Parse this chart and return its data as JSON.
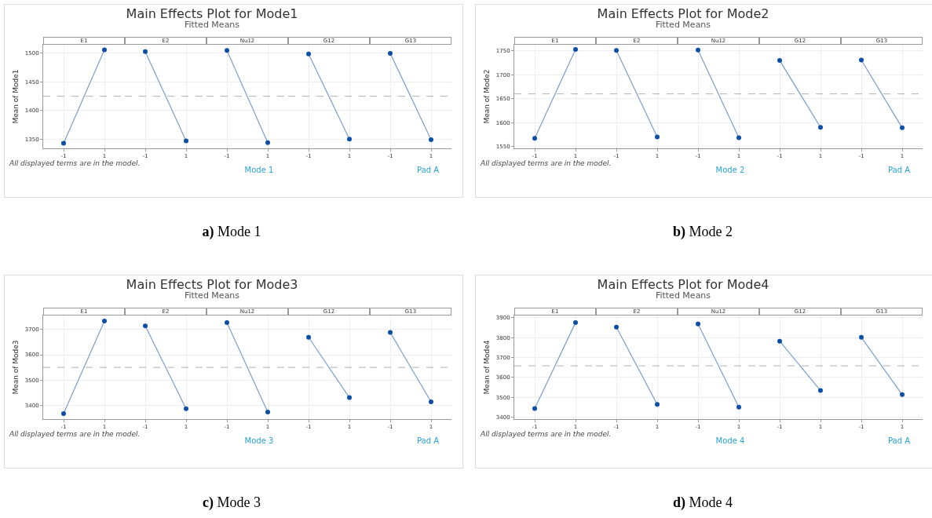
{
  "chart_data": [
    {
      "type": "line",
      "title": "E1",
      "ylabel": "Mean of Mode1",
      "categories": [
        "-1",
        "1"
      ],
      "ylim": [
        1334,
        1515
      ],
      "yticks": [
        1350,
        1400,
        1450,
        1500
      ],
      "grid": true,
      "marker": "circle",
      "series": [
        {
          "color": "#0d4fa3",
          "values": [
            1343,
            1506
          ]
        }
      ],
      "ref_lines": [
        {
          "axis": "y",
          "value": 1425,
          "color": "#b0b0b0",
          "line_style": "dashed"
        }
      ],
      "annotations": [
        "Main Effects Plot for Mode1",
        "Fitted Means",
        "All displayed terms are in the model.",
        "Mode 1",
        "Pad A",
        "a) Mode 1"
      ]
    },
    {
      "type": "line",
      "title": "E2",
      "categories": [
        "-1",
        "1"
      ],
      "ylim": [
        1334,
        1515
      ],
      "yticks": [
        1350,
        1400,
        1450,
        1500
      ],
      "tick_labels": "x",
      "grid": true,
      "marker": "circle",
      "series": [
        {
          "color": "#0d4fa3",
          "values": [
            1503,
            1347
          ]
        }
      ],
      "ref_lines": [
        {
          "axis": "y",
          "value": 1425,
          "color": "#b0b0b0",
          "line_style": "dashed"
        }
      ]
    },
    {
      "type": "line",
      "title": "Nu12",
      "categories": [
        "-1",
        "1"
      ],
      "ylim": [
        1334,
        1515
      ],
      "yticks": [
        1350,
        1400,
        1450,
        1500
      ],
      "tick_labels": "x",
      "grid": true,
      "marker": "circle",
      "series": [
        {
          "color": "#0d4fa3",
          "values": [
            1505,
            1344
          ]
        }
      ],
      "ref_lines": [
        {
          "axis": "y",
          "value": 1425,
          "color": "#b0b0b0",
          "line_style": "dashed"
        }
      ]
    },
    {
      "type": "line",
      "title": "G12",
      "categories": [
        "-1",
        "1"
      ],
      "ylim": [
        1334,
        1515
      ],
      "yticks": [
        1350,
        1400,
        1450,
        1500
      ],
      "tick_labels": "x",
      "grid": true,
      "marker": "circle",
      "series": [
        {
          "color": "#0d4fa3",
          "values": [
            1499,
            1350
          ]
        }
      ],
      "ref_lines": [
        {
          "axis": "y",
          "value": 1425,
          "color": "#b0b0b0",
          "line_style": "dashed"
        }
      ]
    },
    {
      "type": "line",
      "title": "G13",
      "categories": [
        "-1",
        "1"
      ],
      "ylim": [
        1334,
        1515
      ],
      "yticks": [
        1350,
        1400,
        1450,
        1500
      ],
      "tick_labels": "x",
      "grid": true,
      "marker": "circle",
      "series": [
        {
          "color": "#0d4fa3",
          "values": [
            1500,
            1349
          ]
        }
      ],
      "ref_lines": [
        {
          "axis": "y",
          "value": 1425,
          "color": "#b0b0b0",
          "line_style": "dashed"
        }
      ]
    },
    {
      "type": "line",
      "title": "E1",
      "ylabel": "Mean of Mode2",
      "categories": [
        "-1",
        "1"
      ],
      "ylim": [
        1546,
        1763
      ],
      "yticks": [
        1550,
        1600,
        1650,
        1700,
        1750
      ],
      "grid": true,
      "marker": "circle",
      "series": [
        {
          "color": "#0d4fa3",
          "values": [
            1567,
            1753
          ]
        }
      ],
      "ref_lines": [
        {
          "axis": "y",
          "value": 1660,
          "color": "#b0b0b0",
          "line_style": "dashed"
        }
      ],
      "annotations": [
        "Main Effects Plot for Mode2",
        "Fitted Means",
        "All displayed terms are in the model.",
        "Mode 2",
        "Pad A",
        "b) Mode 2"
      ]
    },
    {
      "type": "line",
      "title": "E2",
      "categories": [
        "-1",
        "1"
      ],
      "ylim": [
        1546,
        1763
      ],
      "yticks": [
        1550,
        1600,
        1650,
        1700,
        1750
      ],
      "tick_labels": "x",
      "grid": true,
      "marker": "circle",
      "series": [
        {
          "color": "#0d4fa3",
          "values": [
            1751,
            1570
          ]
        }
      ],
      "ref_lines": [
        {
          "axis": "y",
          "value": 1660,
          "color": "#b0b0b0",
          "line_style": "dashed"
        }
      ]
    },
    {
      "type": "line",
      "title": "Nu12",
      "categories": [
        "-1",
        "1"
      ],
      "ylim": [
        1546,
        1763
      ],
      "yticks": [
        1550,
        1600,
        1650,
        1700,
        1750
      ],
      "tick_labels": "x",
      "grid": true,
      "marker": "circle",
      "series": [
        {
          "color": "#0d4fa3",
          "values": [
            1752,
            1568
          ]
        }
      ],
      "ref_lines": [
        {
          "axis": "y",
          "value": 1660,
          "color": "#b0b0b0",
          "line_style": "dashed"
        }
      ]
    },
    {
      "type": "line",
      "title": "G12",
      "categories": [
        "-1",
        "1"
      ],
      "ylim": [
        1546,
        1763
      ],
      "yticks": [
        1550,
        1600,
        1650,
        1700,
        1750
      ],
      "tick_labels": "x",
      "grid": true,
      "marker": "circle",
      "series": [
        {
          "color": "#0d4fa3",
          "values": [
            1730,
            1590
          ]
        }
      ],
      "ref_lines": [
        {
          "axis": "y",
          "value": 1660,
          "color": "#b0b0b0",
          "line_style": "dashed"
        }
      ]
    },
    {
      "type": "line",
      "title": "G13",
      "categories": [
        "-1",
        "1"
      ],
      "ylim": [
        1546,
        1763
      ],
      "yticks": [
        1550,
        1600,
        1650,
        1700,
        1750
      ],
      "tick_labels": "x",
      "grid": true,
      "marker": "circle",
      "series": [
        {
          "color": "#0d4fa3",
          "values": [
            1731,
            1589
          ]
        }
      ],
      "ref_lines": [
        {
          "axis": "y",
          "value": 1660,
          "color": "#b0b0b0",
          "line_style": "dashed"
        }
      ]
    },
    {
      "type": "line",
      "title": "E1",
      "ylabel": "Mean of Mode3",
      "categories": [
        "-1",
        "1"
      ],
      "ylim": [
        3346,
        3755
      ],
      "yticks": [
        3400,
        3500,
        3600,
        3700
      ],
      "grid": true,
      "marker": "circle",
      "series": [
        {
          "color": "#0d4fa3",
          "values": [
            3368,
            3733
          ]
        }
      ],
      "ref_lines": [
        {
          "axis": "y",
          "value": 3550,
          "color": "#b0b0b0",
          "line_style": "dashed"
        }
      ],
      "annotations": [
        "Main Effects Plot for Mode3",
        "Fitted Means",
        "All displayed terms are in the model.",
        "Mode 3",
        "Pad A",
        "c) Mode 3"
      ]
    },
    {
      "type": "line",
      "title": "E2",
      "categories": [
        "-1",
        "1"
      ],
      "ylim": [
        3346,
        3755
      ],
      "yticks": [
        3400,
        3500,
        3600,
        3700
      ],
      "tick_labels": "x",
      "grid": true,
      "marker": "circle",
      "series": [
        {
          "color": "#0d4fa3",
          "values": [
            3714,
            3387
          ]
        }
      ],
      "ref_lines": [
        {
          "axis": "y",
          "value": 3550,
          "color": "#b0b0b0",
          "line_style": "dashed"
        }
      ]
    },
    {
      "type": "line",
      "title": "Nu12",
      "categories": [
        "-1",
        "1"
      ],
      "ylim": [
        3346,
        3755
      ],
      "yticks": [
        3400,
        3500,
        3600,
        3700
      ],
      "tick_labels": "x",
      "grid": true,
      "marker": "circle",
      "series": [
        {
          "color": "#0d4fa3",
          "values": [
            3727,
            3374
          ]
        }
      ],
      "ref_lines": [
        {
          "axis": "y",
          "value": 3550,
          "color": "#b0b0b0",
          "line_style": "dashed"
        }
      ]
    },
    {
      "type": "line",
      "title": "G12",
      "categories": [
        "-1",
        "1"
      ],
      "ylim": [
        3346,
        3755
      ],
      "yticks": [
        3400,
        3500,
        3600,
        3700
      ],
      "tick_labels": "x",
      "grid": true,
      "marker": "circle",
      "series": [
        {
          "color": "#0d4fa3",
          "values": [
            3669,
            3431
          ]
        }
      ],
      "ref_lines": [
        {
          "axis": "y",
          "value": 3550,
          "color": "#b0b0b0",
          "line_style": "dashed"
        }
      ]
    },
    {
      "type": "line",
      "title": "G13",
      "categories": [
        "-1",
        "1"
      ],
      "ylim": [
        3346,
        3755
      ],
      "yticks": [
        3400,
        3500,
        3600,
        3700
      ],
      "tick_labels": "x",
      "grid": true,
      "marker": "circle",
      "series": [
        {
          "color": "#0d4fa3",
          "values": [
            3688,
            3414
          ]
        }
      ],
      "ref_lines": [
        {
          "axis": "y",
          "value": 3550,
          "color": "#b0b0b0",
          "line_style": "dashed"
        }
      ]
    },
    {
      "type": "line",
      "title": "E1",
      "ylabel": "Mean of Mode4",
      "categories": [
        "-1",
        "1"
      ],
      "ylim": [
        3390,
        3911
      ],
      "yticks": [
        3400,
        3500,
        3600,
        3700,
        3800,
        3900
      ],
      "grid": true,
      "marker": "circle",
      "series": [
        {
          "color": "#0d4fa3",
          "values": [
            3443,
            3875
          ]
        }
      ],
      "ref_lines": [
        {
          "axis": "y",
          "value": 3658,
          "color": "#b0b0b0",
          "line_style": "dashed"
        }
      ],
      "annotations": [
        "Main Effects Plot for Mode4",
        "Fitted Means",
        "All displayed terms are in the model.",
        "Mode 4",
        "Pad A",
        "d) Mode 4"
      ]
    },
    {
      "type": "line",
      "title": "E2",
      "categories": [
        "-1",
        "1"
      ],
      "ylim": [
        3390,
        3911
      ],
      "yticks": [
        3400,
        3500,
        3600,
        3700,
        3800,
        3900
      ],
      "tick_labels": "x",
      "grid": true,
      "marker": "circle",
      "series": [
        {
          "color": "#0d4fa3",
          "values": [
            3853,
            3464
          ]
        }
      ],
      "ref_lines": [
        {
          "axis": "y",
          "value": 3658,
          "color": "#b0b0b0",
          "line_style": "dashed"
        }
      ]
    },
    {
      "type": "line",
      "title": "Nu12",
      "categories": [
        "-1",
        "1"
      ],
      "ylim": [
        3390,
        3911
      ],
      "yticks": [
        3400,
        3500,
        3600,
        3700,
        3800,
        3900
      ],
      "tick_labels": "x",
      "grid": true,
      "marker": "circle",
      "series": [
        {
          "color": "#0d4fa3",
          "values": [
            3869,
            3450
          ]
        }
      ],
      "ref_lines": [
        {
          "axis": "y",
          "value": 3658,
          "color": "#b0b0b0",
          "line_style": "dashed"
        }
      ]
    },
    {
      "type": "line",
      "title": "G12",
      "categories": [
        "-1",
        "1"
      ],
      "ylim": [
        3390,
        3911
      ],
      "yticks": [
        3400,
        3500,
        3600,
        3700,
        3800,
        3900
      ],
      "tick_labels": "x",
      "grid": true,
      "marker": "circle",
      "series": [
        {
          "color": "#0d4fa3",
          "values": [
            3782,
            3534
          ]
        }
      ],
      "ref_lines": [
        {
          "axis": "y",
          "value": 3658,
          "color": "#b0b0b0",
          "line_style": "dashed"
        }
      ]
    },
    {
      "type": "line",
      "title": "G13",
      "categories": [
        "-1",
        "1"
      ],
      "ylim": [
        3390,
        3911
      ],
      "yticks": [
        3400,
        3500,
        3600,
        3700,
        3800,
        3900
      ],
      "tick_labels": "x",
      "grid": true,
      "marker": "circle",
      "series": [
        {
          "color": "#0d4fa3",
          "values": [
            3801,
            3513
          ]
        }
      ],
      "ref_lines": [
        {
          "axis": "y",
          "value": 3658,
          "color": "#b0b0b0",
          "line_style": "dashed"
        }
      ]
    }
  ]
}
